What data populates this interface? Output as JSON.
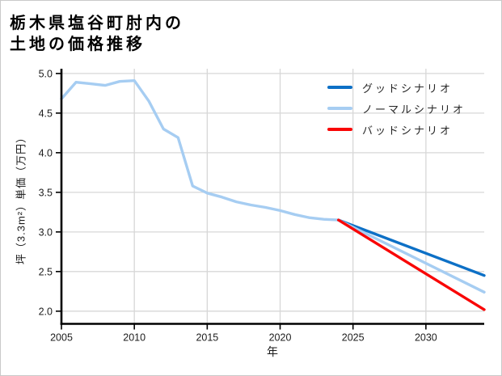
{
  "title": {
    "line1": "栃木県塩谷町肘内の",
    "line2": "土地の価格推移"
  },
  "chart_data": {
    "type": "line",
    "title": "栃木県塩谷町肘内の土地の価格推移",
    "xlabel": "年",
    "ylabel": "坪（3.3m²）単価（万円）",
    "xlim": [
      2005,
      2034
    ],
    "ylim": [
      1.84,
      5.06
    ],
    "x_ticks": [
      2005,
      2010,
      2015,
      2020,
      2025,
      2030
    ],
    "y_ticks": [
      2.0,
      2.5,
      3.0,
      3.5,
      4.0,
      4.5,
      5.0
    ],
    "grid": true,
    "legend_position": "upper right",
    "colors": {
      "good": "#0d70c6",
      "normal": "#a6cdf2",
      "bad": "#f90606",
      "history": "#a6cdf2",
      "grid": "#d7d7d7",
      "spine": "#000000",
      "tick_text": "#1c1c1c"
    },
    "series": [
      {
        "key": "history",
        "color": "#a6cdf2",
        "x": [
          2005,
          2006,
          2007,
          2008,
          2009,
          2010,
          2011,
          2012,
          2013,
          2014,
          2015,
          2016,
          2017,
          2018,
          2019,
          2020,
          2021,
          2022,
          2023,
          2024
        ],
        "values": [
          4.68,
          4.89,
          4.87,
          4.85,
          4.9,
          4.91,
          4.65,
          4.3,
          4.19,
          3.58,
          3.49,
          3.44,
          3.38,
          3.34,
          3.31,
          3.27,
          3.22,
          3.18,
          3.16,
          3.15
        ]
      },
      {
        "key": "good",
        "label": "グッドシナリオ",
        "color": "#0d70c6",
        "x": [
          2024,
          2034
        ],
        "values": [
          3.15,
          2.45
        ]
      },
      {
        "key": "normal",
        "label": "ノーマルシナリオ",
        "color": "#a6cdf2",
        "x": [
          2024,
          2034
        ],
        "values": [
          3.15,
          2.24
        ]
      },
      {
        "key": "bad",
        "label": "バッドシナリオ",
        "color": "#f90606",
        "x": [
          2024,
          2034
        ],
        "values": [
          3.15,
          2.02
        ]
      }
    ],
    "legend": [
      {
        "key": "good",
        "label": "グッドシナリオ",
        "color": "#0d70c6"
      },
      {
        "key": "normal",
        "label": "ノーマルシナリオ",
        "color": "#a6cdf2"
      },
      {
        "key": "bad",
        "label": "バッドシナリオ",
        "color": "#f90606"
      }
    ]
  }
}
